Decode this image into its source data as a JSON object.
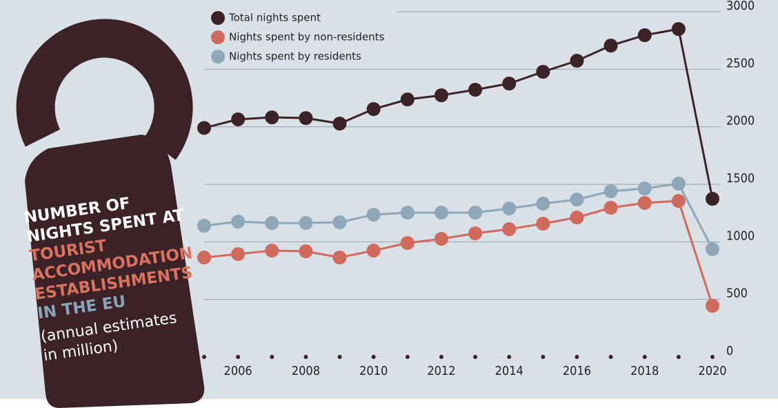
{
  "chart_data": {
    "type": "line",
    "title": [
      "NUMBER OF",
      "NIGHTS SPENT AT",
      "TOURIST",
      "ACCOMMODATION",
      "ESTABLISHMENTS",
      "IN THE EU"
    ],
    "subtitle": [
      "(annual estimates",
      "in million)"
    ],
    "x": [
      2005,
      2006,
      2007,
      2008,
      2009,
      2010,
      2011,
      2012,
      2013,
      2014,
      2015,
      2016,
      2017,
      2018,
      2019,
      2020
    ],
    "xlim": [
      2005,
      2020
    ],
    "xticks": [
      2006,
      2008,
      2010,
      2012,
      2014,
      2016,
      2018,
      2020
    ],
    "ylim": [
      0,
      3000
    ],
    "yticks": [
      0,
      500,
      1000,
      1500,
      2000,
      2500,
      3000
    ],
    "grid": true,
    "series": [
      {
        "name": "Total nights spent",
        "color": "#3b2226",
        "values": [
          1990,
          2065,
          2082,
          2076,
          2028,
          2154,
          2238,
          2274,
          2322,
          2376,
          2478,
          2574,
          2706,
          2796,
          2850,
          1374
        ]
      },
      {
        "name": "Nights spent by non-residents",
        "color": "#d06a5c",
        "values": [
          864,
          894,
          924,
          918,
          864,
          924,
          990,
          1026,
          1074,
          1110,
          1158,
          1212,
          1296,
          1338,
          1356,
          444
        ]
      },
      {
        "name": "Nights spent by residents",
        "color": "#8ea7b9",
        "values": [
          1140,
          1176,
          1164,
          1164,
          1170,
          1236,
          1254,
          1254,
          1254,
          1290,
          1332,
          1368,
          1440,
          1464,
          1506,
          936
        ]
      }
    ]
  }
}
